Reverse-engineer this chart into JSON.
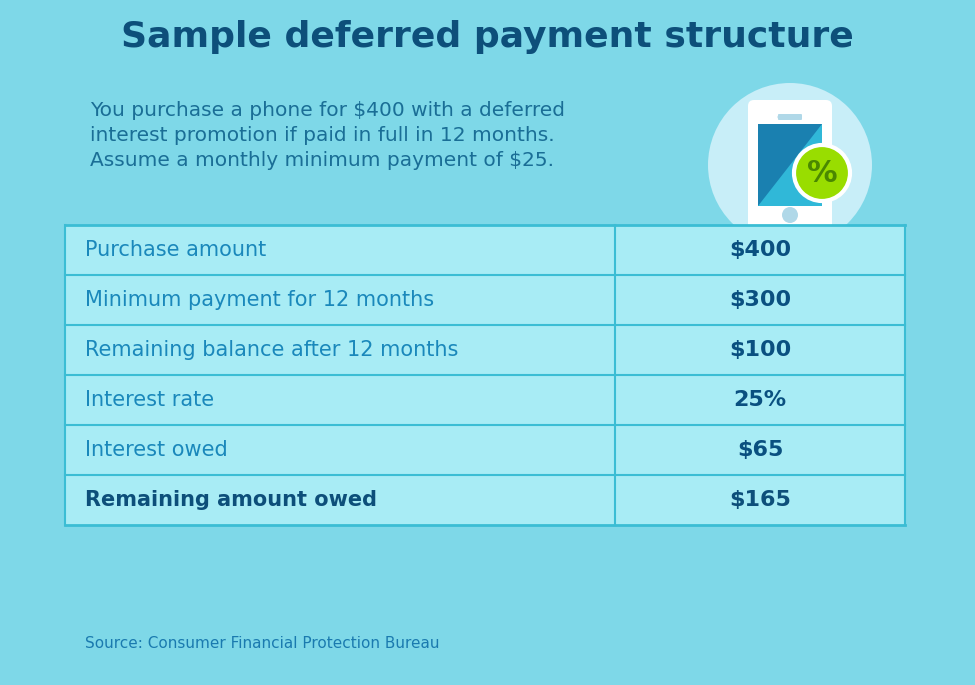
{
  "title": "Sample deferred payment structure",
  "subtitle_lines": [
    "You purchase a phone for $400 with a deferred",
    "interest promotion if paid in full in 12 months.",
    "Assume a monthly minimum payment of $25."
  ],
  "table_rows": [
    {
      "label": "Purchase amount",
      "value": "$400",
      "bold": false
    },
    {
      "label": "Minimum payment for 12 months",
      "value": "$300",
      "bold": false
    },
    {
      "label": "Remaining balance after 12 months",
      "value": "$100",
      "bold": false
    },
    {
      "label": "Interest rate",
      "value": "25%",
      "bold": false
    },
    {
      "label": "Interest owed",
      "value": "$65",
      "bold": false
    },
    {
      "label": "Remaining amount owed",
      "value": "$165",
      "bold": true
    }
  ],
  "source_text": "Source: Consumer Financial Protection Bureau",
  "bg_color": "#7ED8E8",
  "row_fill_color": "#A8ECF5",
  "table_line_color": "#3BBDD4",
  "title_color": "#0D4F7A",
  "subtitle_color": "#1A6E96",
  "value_color": "#0A5080",
  "label_color": "#1A88BB",
  "source_color": "#1A7AAF",
  "title_fontsize": 26,
  "subtitle_fontsize": 14.5,
  "table_label_fontsize": 15,
  "table_value_fontsize": 16,
  "source_fontsize": 11,
  "icon_glow_color": "#C8EEF8",
  "phone_body_color": "#FFFFFF",
  "phone_screen_teal": "#30B8D8",
  "phone_screen_blue": "#1A80B0",
  "phone_detail_color": "#AAAAAA",
  "pct_circle_color": "#99DD00",
  "pct_text_color": "#4A8800"
}
